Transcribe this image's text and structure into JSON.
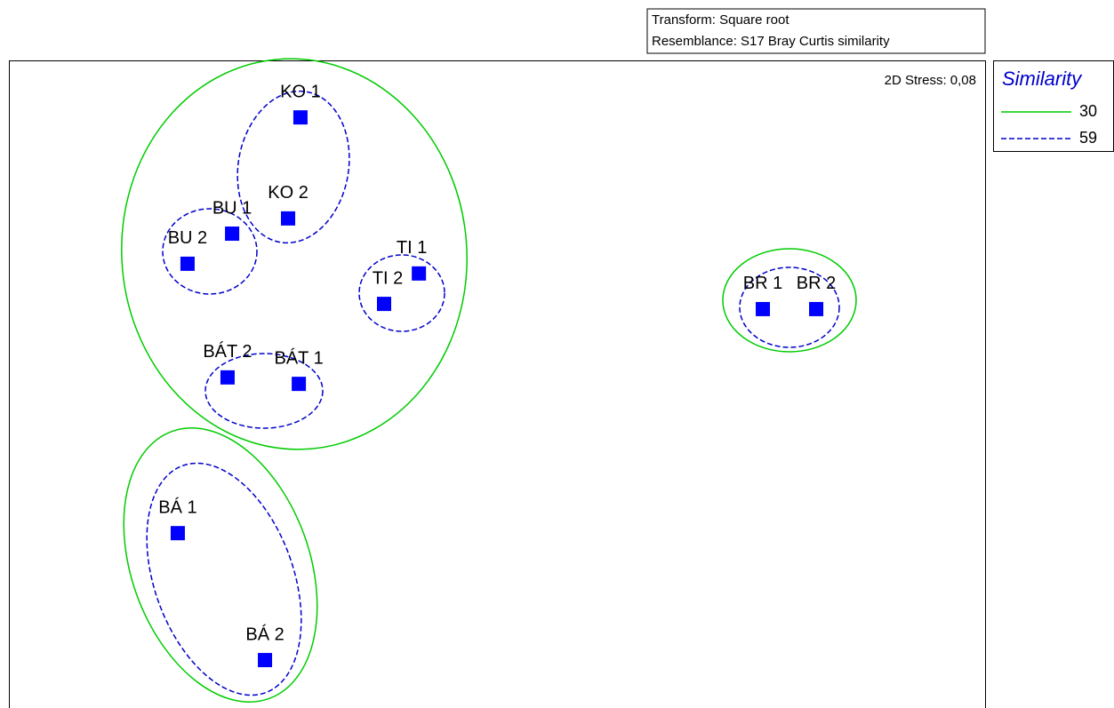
{
  "chart_data": {
    "type": "scatter",
    "notes": [
      "Transform: Square root",
      "Resemblance: S17 Bray Curtis similarity"
    ],
    "stress": "2D Stress: 0,08",
    "legend_title": "Similarity",
    "contours": [
      {
        "name": "30",
        "color": "#00cc00",
        "dash": false
      },
      {
        "name": "59",
        "color": "#0000cc",
        "dash": true
      }
    ],
    "point_color": "#0000ff",
    "labels": [
      "KO 1",
      "KO 2",
      "BU 1",
      "BU 2",
      "TI 1",
      "TI 2",
      "BÁT 2",
      "BÁT 1",
      "BR 1",
      "BR 2",
      "BÁ 1",
      "BÁ 2"
    ],
    "x": [
      -0.604,
      -0.642,
      -0.814,
      -0.951,
      -0.24,
      -0.347,
      -0.828,
      -0.609,
      0.817,
      0.981,
      -0.981,
      -0.713
    ],
    "y": [
      0.824,
      0.512,
      0.465,
      0.372,
      0.342,
      0.248,
      0.021,
      0.001,
      0.232,
      0.232,
      -0.46,
      -0.852
    ],
    "xlim": [
      -1.5,
      1.5
    ],
    "ylim": [
      -1,
      1
    ]
  }
}
